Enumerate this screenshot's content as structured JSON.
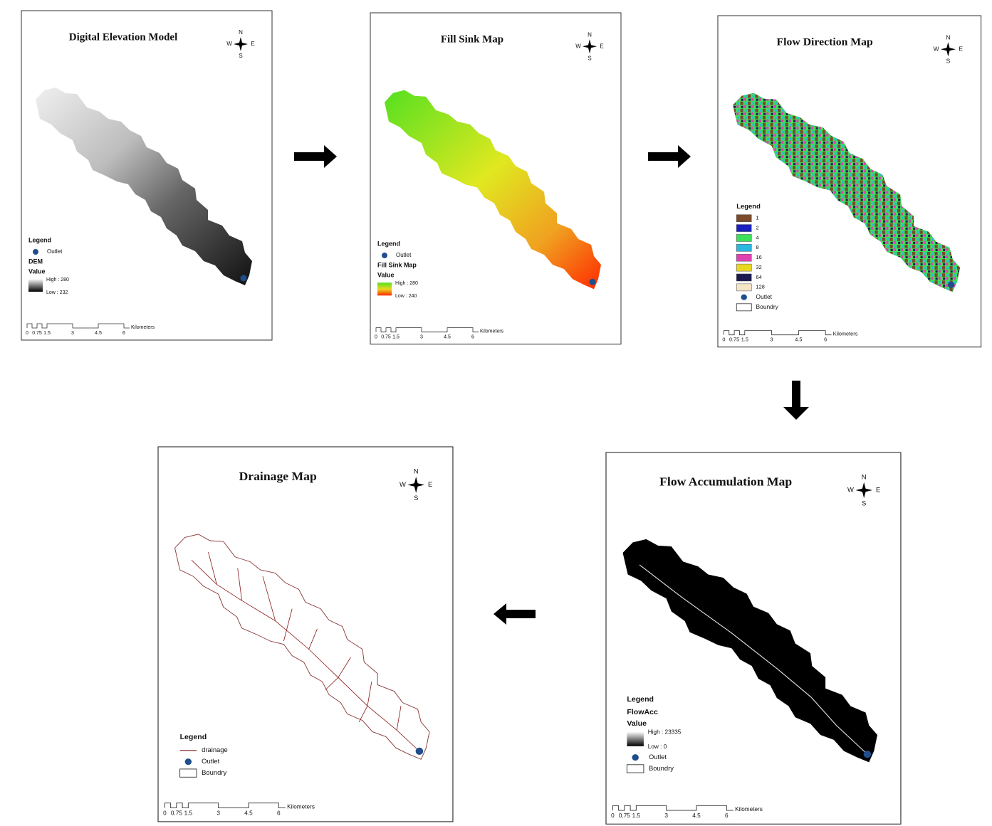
{
  "compass": {
    "n": "N",
    "s": "S",
    "e": "E",
    "w": "W"
  },
  "scale": {
    "ticks": [
      "0",
      "0.75",
      "1.5",
      "3",
      "4.5",
      "6"
    ],
    "unit": "Kilometers"
  },
  "maps": [
    {
      "title": "Digital Elevation Model",
      "legend": "Legend",
      "outlet": "Outlet",
      "layer": "DEM",
      "value": "Value",
      "high": "High : 280",
      "low": "Low : 232"
    },
    {
      "title": "Fill Sink Map",
      "legend": "Legend",
      "outlet": "Outlet",
      "layer": "Fill Sink Map",
      "value": "Value",
      "high": "High : 280",
      "low": "Low : 240"
    },
    {
      "title": "Flow Direction Map",
      "legend": "Legend",
      "classes": [
        {
          "label": "1",
          "color": "#7b4a2a"
        },
        {
          "label": "2",
          "color": "#1a1fc0"
        },
        {
          "label": "4",
          "color": "#3de05a"
        },
        {
          "label": "8",
          "color": "#2ab7e0"
        },
        {
          "label": "16",
          "color": "#e040b0"
        },
        {
          "label": "32",
          "color": "#e8d820"
        },
        {
          "label": "64",
          "color": "#1a1a50"
        },
        {
          "label": "128",
          "color": "#f5e6c8"
        }
      ],
      "outlet": "Outlet",
      "boundary": "Boundry"
    },
    {
      "title": "Flow Accumulation Map",
      "legend": "Legend",
      "layer": "FlowAcc",
      "value": "Value",
      "high": "High : 23335",
      "low": "Low : 0",
      "outlet": "Outlet",
      "boundary": "Boundry"
    },
    {
      "title": "Drainage Map",
      "legend": "Legend",
      "drainage": "drainage",
      "outlet": "Outlet",
      "boundary": "Boundry"
    }
  ]
}
